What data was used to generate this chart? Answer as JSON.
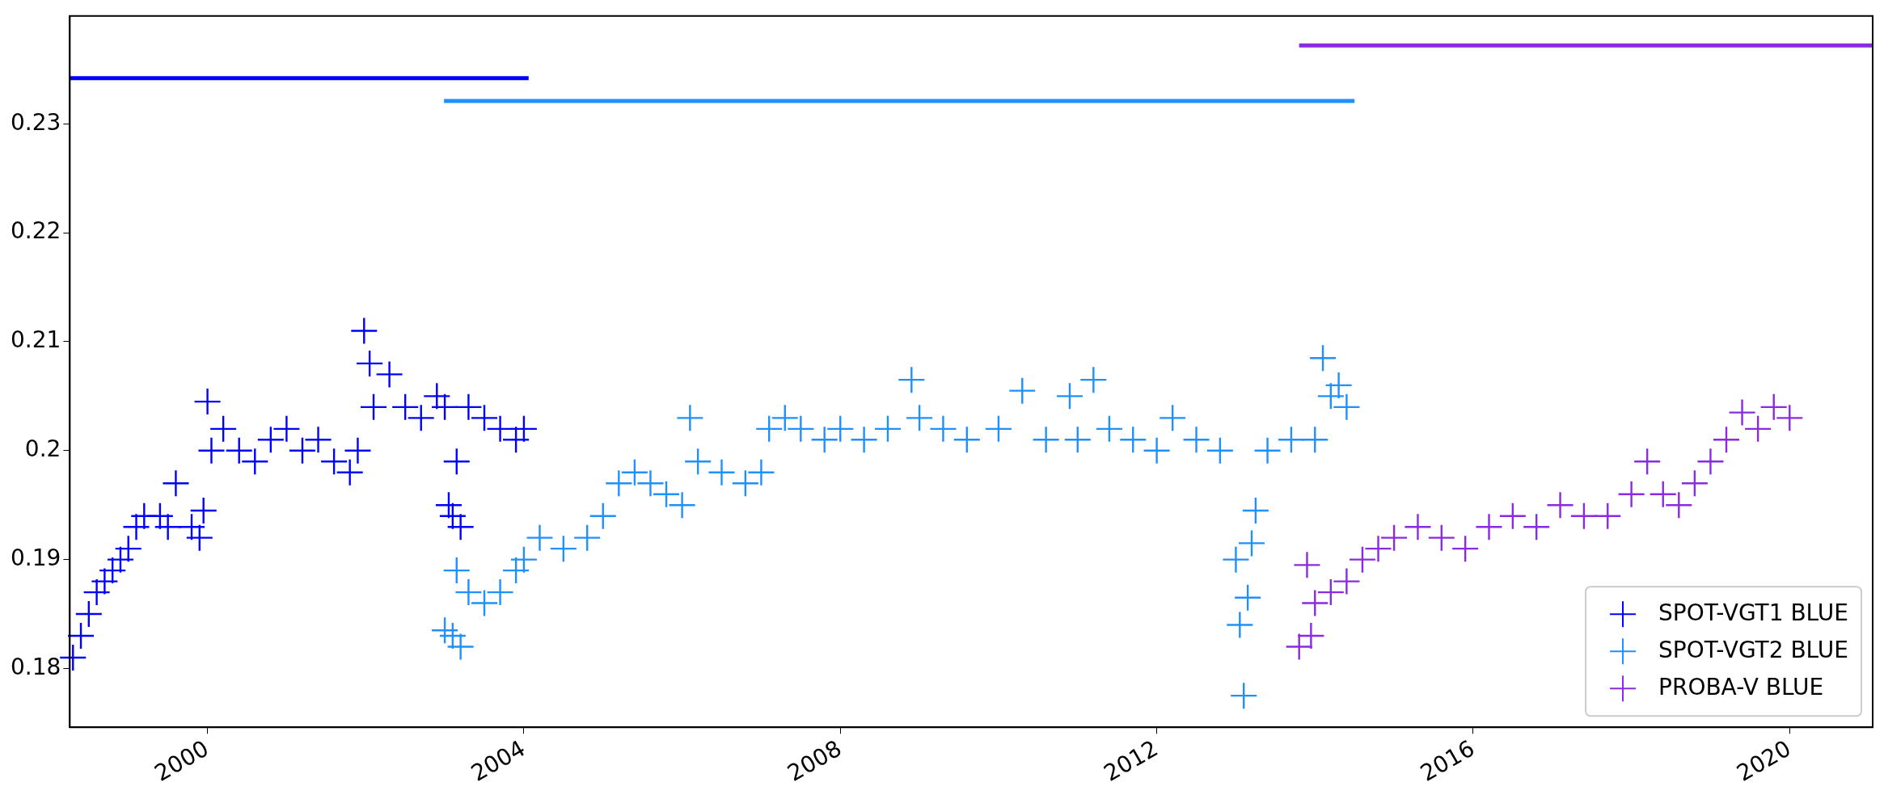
{
  "chart_data": {
    "type": "scatter",
    "marker": "cross",
    "legend": "bottom right",
    "grid": false,
    "xlim": [
      1998.26,
      2021.05
    ],
    "xticks": [
      2000,
      2004,
      2008,
      2012,
      2016,
      2020
    ],
    "ylim": [
      0.1746,
      0.2399
    ],
    "yticks": [
      0.18,
      0.19,
      0.2,
      0.21,
      0.22,
      0.23
    ],
    "series": [
      {
        "name": "SPOT-VGT1 BLUE",
        "color": "#0000ff",
        "x": [
          1998.3,
          1998.4,
          1998.5,
          1998.6,
          1998.7,
          1998.8,
          1998.9,
          1999.0,
          1999.1,
          1999.2,
          1999.4,
          1999.5,
          1999.6,
          1999.8,
          1999.9,
          1999.95,
          2000.0,
          2000.05,
          2000.2,
          2000.4,
          2000.6,
          2000.8,
          2001.0,
          2001.2,
          2001.4,
          2001.6,
          2001.8,
          2001.9,
          2001.98,
          2002.05,
          2002.1,
          2002.3,
          2002.5,
          2002.7,
          2002.9,
          2003.0,
          2003.05,
          2003.1,
          2003.15,
          2003.2,
          2003.3,
          2003.5,
          2003.7,
          2003.9,
          2004.0
        ],
        "values": [
          0.181,
          0.183,
          0.185,
          0.187,
          0.188,
          0.189,
          0.19,
          0.191,
          0.193,
          0.194,
          0.194,
          0.193,
          0.197,
          0.193,
          0.192,
          0.1945,
          0.2045,
          0.2,
          0.202,
          0.2,
          0.199,
          0.201,
          0.202,
          0.2,
          0.201,
          0.199,
          0.198,
          0.2,
          0.211,
          0.208,
          0.204,
          0.207,
          0.204,
          0.203,
          0.205,
          0.204,
          0.195,
          0.194,
          0.199,
          0.193,
          0.204,
          0.203,
          0.202,
          0.201,
          0.202
        ]
      },
      {
        "name": "SPOT-VGT2 BLUE",
        "color": "#1e90ff",
        "x": [
          2003.0,
          2003.1,
          2003.15,
          2003.2,
          2003.3,
          2003.5,
          2003.7,
          2003.9,
          2004.0,
          2004.2,
          2004.5,
          2004.8,
          2005.0,
          2005.2,
          2005.4,
          2005.6,
          2005.8,
          2006.0,
          2006.1,
          2006.2,
          2006.5,
          2006.8,
          2007.0,
          2007.1,
          2007.3,
          2007.5,
          2007.8,
          2008.0,
          2008.3,
          2008.6,
          2008.9,
          2009.0,
          2009.3,
          2009.6,
          2010.0,
          2010.3,
          2010.6,
          2010.9,
          2011.0,
          2011.2,
          2011.4,
          2011.7,
          2012.0,
          2012.2,
          2012.5,
          2012.8,
          2013.0,
          2013.05,
          2013.1,
          2013.15,
          2013.2,
          2013.25,
          2013.4,
          2013.7,
          2014.0,
          2014.1,
          2014.2,
          2014.3,
          2014.4
        ],
        "values": [
          0.1835,
          0.183,
          0.189,
          0.182,
          0.187,
          0.186,
          0.187,
          0.189,
          0.19,
          0.192,
          0.191,
          0.192,
          0.194,
          0.197,
          0.198,
          0.197,
          0.196,
          0.195,
          0.203,
          0.199,
          0.198,
          0.197,
          0.198,
          0.202,
          0.203,
          0.202,
          0.201,
          0.202,
          0.201,
          0.202,
          0.2065,
          0.203,
          0.202,
          0.201,
          0.202,
          0.2055,
          0.201,
          0.205,
          0.201,
          0.2065,
          0.202,
          0.201,
          0.2,
          0.203,
          0.201,
          0.2,
          0.19,
          0.184,
          0.1775,
          0.1865,
          0.1915,
          0.1945,
          0.2,
          0.201,
          0.201,
          0.2085,
          0.205,
          0.206,
          0.204
        ]
      },
      {
        "name": "PROBA-V BLUE",
        "color": "#8a2be2",
        "x": [
          2013.8,
          2013.9,
          2013.95,
          2014.0,
          2014.2,
          2014.4,
          2014.6,
          2014.8,
          2015.0,
          2015.3,
          2015.6,
          2015.9,
          2016.2,
          2016.5,
          2016.8,
          2017.1,
          2017.4,
          2017.7,
          2018.0,
          2018.2,
          2018.4,
          2018.6,
          2018.8,
          2019.0,
          2019.2,
          2019.4,
          2019.6,
          2019.8,
          2020.0
        ],
        "values": [
          0.182,
          0.1895,
          0.183,
          0.186,
          0.187,
          0.188,
          0.19,
          0.191,
          0.192,
          0.193,
          0.192,
          0.191,
          0.193,
          0.194,
          0.193,
          0.195,
          0.194,
          0.194,
          0.196,
          0.199,
          0.196,
          0.195,
          0.197,
          0.199,
          0.201,
          0.2035,
          0.202,
          0.204,
          0.203
        ]
      },
      {
        "type": "line",
        "marker": "none",
        "color": "#0000ff",
        "x": [
          1998.26,
          2004.06
        ],
        "values": [
          0.2342,
          0.2342
        ]
      },
      {
        "type": "line",
        "marker": "none",
        "color": "#1e90ff",
        "x": [
          2002.99,
          2014.5
        ],
        "values": [
          0.2321,
          0.2321
        ]
      },
      {
        "type": "line",
        "marker": "none",
        "color": "#8a2be2",
        "x": [
          2013.8,
          2021.05
        ],
        "values": [
          0.2372,
          0.2372
        ]
      }
    ]
  }
}
